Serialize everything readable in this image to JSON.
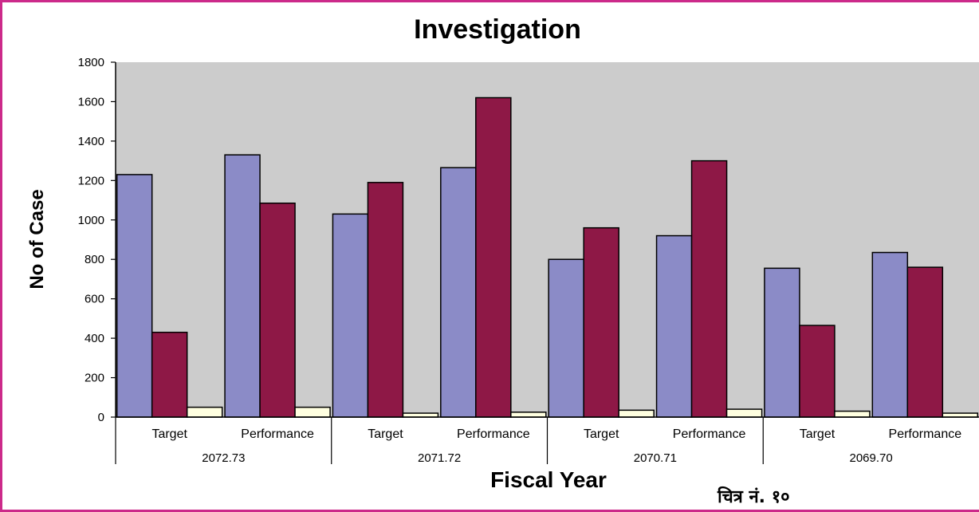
{
  "chart_data": {
    "type": "bar",
    "title": "Investigation",
    "xlabel": "Fiscal Year",
    "ylabel": "No of Case",
    "ylim": [
      0,
      1800
    ],
    "yticks": [
      "0",
      "200",
      "400",
      "600",
      "800",
      "1000",
      "1200",
      "1400",
      "1600",
      "1800"
    ],
    "grid": false,
    "legend": "none",
    "groups": [
      {
        "label": "2072.73",
        "categories": [
          {
            "label": "Target",
            "values": [
              1230,
              430,
              50
            ]
          },
          {
            "label": "Performance",
            "values": [
              1330,
              1085,
              50
            ]
          }
        ]
      },
      {
        "label": "2071.72",
        "categories": [
          {
            "label": "Target",
            "values": [
              1030,
              1190,
              20
            ]
          },
          {
            "label": "Performance",
            "values": [
              1265,
              1620,
              25
            ]
          }
        ]
      },
      {
        "label": "2070.71",
        "categories": [
          {
            "label": "Target",
            "values": [
              800,
              960,
              35
            ]
          },
          {
            "label": "Performance",
            "values": [
              920,
              1300,
              40
            ]
          }
        ]
      },
      {
        "label": "2069.70",
        "categories": [
          {
            "label": "Target",
            "values": [
              755,
              465,
              30
            ]
          },
          {
            "label": "Performance",
            "values": [
              835,
              760,
              20
            ]
          }
        ]
      }
    ],
    "series_colors": [
      "#8b8bc7",
      "#8e1846",
      "#ffffe0"
    ],
    "plot_background": "#cccccc",
    "frame_color": "#cc2a8a",
    "caption": "चित्र नं. १०"
  }
}
